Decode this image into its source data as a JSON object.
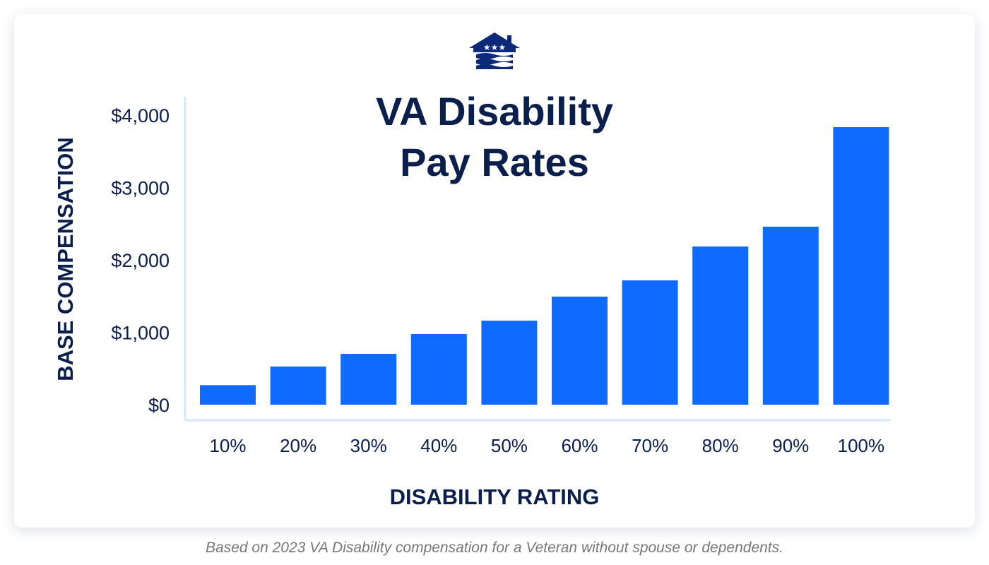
{
  "colors": {
    "bar": "#0f6bff",
    "navy": "#0b1f4d",
    "axis": "#d6e6fb"
  },
  "logo_icon": "house-stars-waves-logo",
  "chart_data": {
    "type": "bar",
    "title_line1": "VA Disability",
    "title_line2": "Pay Rates",
    "xlabel": "DISABILITY RATING",
    "ylabel": "BASE COMPENSATION",
    "ylim": [
      0,
      4000
    ],
    "yticks": [
      0,
      1000,
      2000,
      3000,
      4000
    ],
    "ytick_labels": [
      "$0",
      "$1,000",
      "$2,000",
      "$3,000",
      "$4,000"
    ],
    "categories": [
      "10%",
      "20%",
      "30%",
      "40%",
      "50%",
      "60%",
      "70%",
      "80%",
      "90%",
      "100%"
    ],
    "values": [
      270,
      527,
      702,
      976,
      1161,
      1493,
      1717,
      2185,
      2459,
      3834
    ],
    "grid": false
  },
  "footnote": "Based on 2023 VA Disability compensation for a Veteran without spouse or dependents."
}
